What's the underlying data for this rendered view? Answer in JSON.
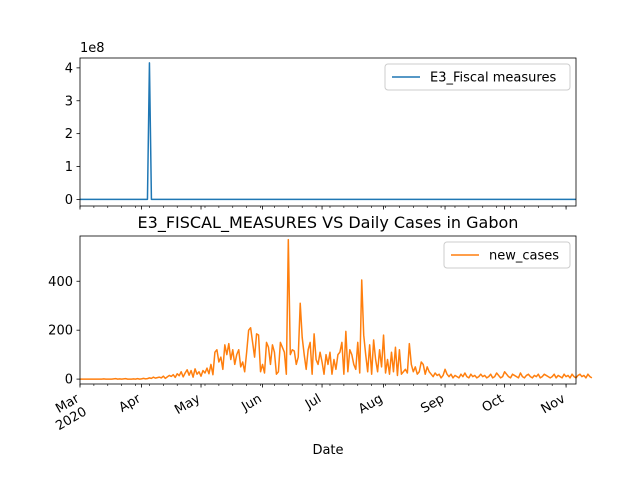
{
  "chart_data": [
    {
      "type": "line",
      "title": "",
      "xlabel": "",
      "ylabel": "",
      "offset_text": "1e8",
      "ylim": [
        -0.2,
        4.3
      ],
      "yticks": [
        0,
        1,
        2,
        3,
        4
      ],
      "ytick_labels": [
        "0",
        "1",
        "2",
        "3",
        "4"
      ],
      "legend_location": "upper right",
      "series": [
        {
          "name": "E3_Fiscal measures",
          "color": "#1f77b4",
          "x_day": [
            0,
            34,
            35,
            36,
            250
          ],
          "values": [
            0,
            0,
            4.15,
            0,
            0
          ]
        }
      ]
    },
    {
      "type": "line",
      "title": "E3_FISCAL_MEASURES VS Daily Cases in Gabon",
      "xlabel": "Date",
      "ylabel": "",
      "ylim": [
        -20,
        585
      ],
      "yticks": [
        0,
        200,
        400
      ],
      "ytick_labels": [
        "0",
        "200",
        "400"
      ],
      "legend_location": "upper right",
      "x_start_date": "2020-03-01",
      "x_range_days": [
        0,
        250
      ],
      "x_tick_days": [
        0,
        31,
        61,
        92,
        122,
        153,
        184,
        214,
        245
      ],
      "x_tick_labels": [
        "Mar\n2020",
        "Apr",
        "May",
        "Jun",
        "Jul",
        "Aug",
        "Sep",
        "Oct",
        "Nov"
      ],
      "series": [
        {
          "name": "new_cases",
          "color": "#ff7f0e",
          "values": [
            0,
            0,
            0,
            0,
            0,
            0,
            0,
            0,
            0,
            0,
            0,
            0,
            1,
            0,
            0,
            0,
            0,
            1,
            2,
            0,
            1,
            0,
            1,
            2,
            0,
            0,
            0,
            1,
            0,
            2,
            0,
            1,
            3,
            1,
            2,
            5,
            3,
            8,
            4,
            6,
            8,
            5,
            12,
            3,
            9,
            15,
            11,
            18,
            7,
            22,
            14,
            30,
            9,
            25,
            38,
            16,
            35,
            8,
            42,
            20,
            30,
            12,
            35,
            25,
            45,
            22,
            60,
            18,
            110,
            120,
            70,
            90,
            40,
            140,
            100,
            145,
            80,
            120,
            60,
            100,
            120,
            50,
            70,
            30,
            110,
            200,
            210,
            150,
            90,
            185,
            180,
            30,
            60,
            25,
            150,
            130,
            60,
            140,
            110,
            20,
            30,
            150,
            130,
            110,
            20,
            570,
            100,
            120,
            115,
            60,
            90,
            310,
            170,
            100,
            40,
            120,
            150,
            20,
            185,
            80,
            60,
            110,
            70,
            20,
            100,
            60,
            110,
            20,
            80,
            40,
            100,
            110,
            150,
            20,
            195,
            30,
            120,
            100,
            60,
            40,
            150,
            25,
            405,
            180,
            100,
            30,
            140,
            20,
            160,
            80,
            30,
            120,
            50,
            180,
            25,
            80,
            20,
            110,
            30,
            130,
            15,
            120,
            20,
            30,
            40,
            25,
            145,
            60,
            30,
            50,
            20,
            30,
            70,
            60,
            20,
            50,
            30,
            20,
            10,
            25,
            15,
            20,
            5,
            15,
            40,
            20,
            10,
            20,
            5,
            15,
            10,
            5,
            20,
            10,
            25,
            10,
            5,
            20,
            10,
            15,
            5,
            10,
            20,
            10,
            15,
            5,
            10,
            20,
            5,
            10,
            25,
            15,
            5,
            10,
            30,
            20,
            10,
            5,
            20,
            15,
            10,
            5,
            25,
            10,
            5,
            15,
            20,
            10,
            5,
            15,
            10,
            20,
            5,
            10,
            20,
            15,
            10,
            5,
            10,
            20,
            5,
            15,
            10,
            5,
            20,
            10,
            15,
            5,
            20,
            10,
            5,
            15,
            20,
            10,
            15,
            5,
            20,
            10,
            5
          ]
        }
      ]
    }
  ]
}
